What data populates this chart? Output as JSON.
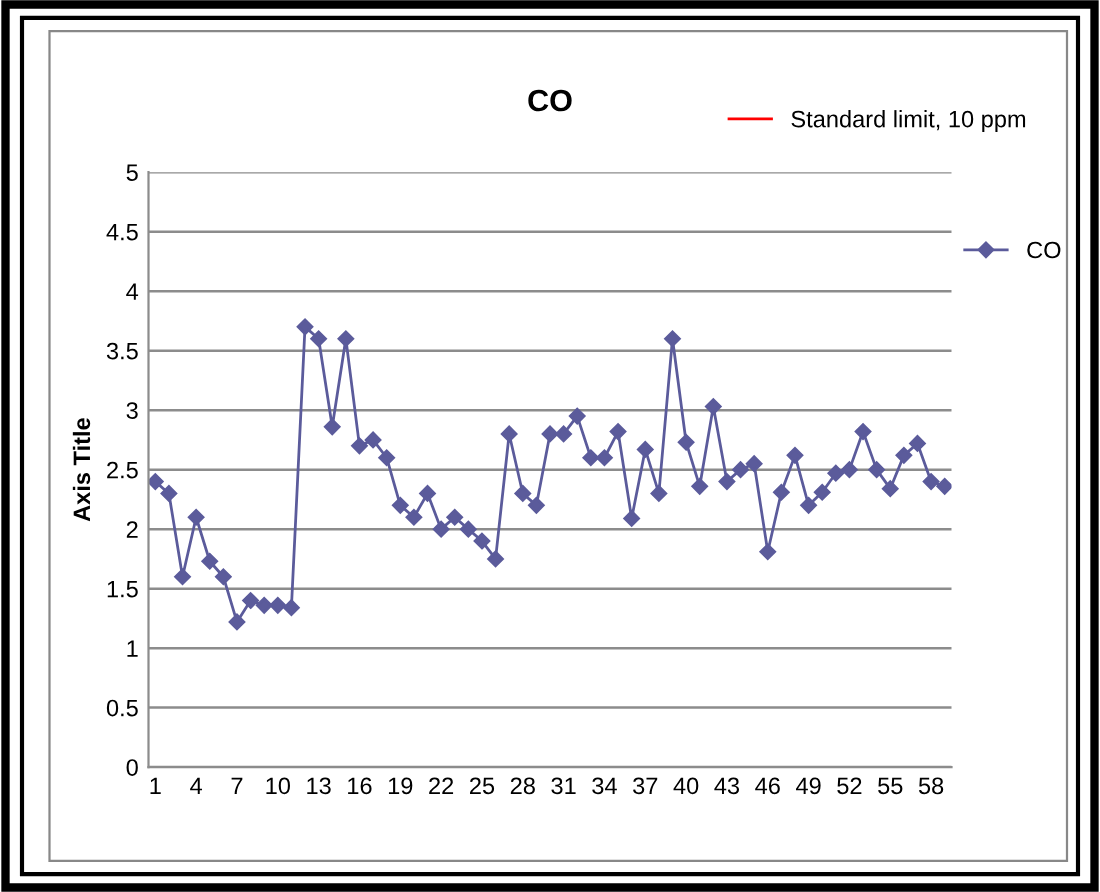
{
  "chart_data": {
    "type": "line",
    "title": "CO",
    "ylabel": "Axis Title",
    "categories": [
      "1",
      null,
      null,
      "4",
      null,
      null,
      "7",
      null,
      null,
      "10",
      null,
      null,
      "13",
      null,
      null,
      "16",
      null,
      null,
      "19",
      null,
      null,
      "22",
      null,
      null,
      "25",
      null,
      null,
      "28",
      null,
      null,
      "31",
      null,
      null,
      "34",
      null,
      null,
      "37",
      null,
      null,
      "40",
      null,
      null,
      "43",
      null,
      null,
      "46",
      null,
      null,
      "49",
      null,
      null,
      "52",
      null,
      null,
      "55",
      null,
      null,
      "58",
      null
    ],
    "series": [
      {
        "name": "Standard limit, 10 ppm",
        "color": "#ff0000",
        "marker": "none",
        "values": [
          null,
          null,
          null,
          null,
          null,
          null,
          null,
          null,
          null,
          null,
          null,
          null,
          null,
          null,
          null,
          null,
          null,
          null,
          null,
          null,
          null,
          null,
          null,
          null,
          null,
          null,
          null,
          null,
          null,
          null,
          null,
          null,
          null,
          null,
          null,
          null,
          null,
          null,
          null,
          null,
          null,
          null,
          null,
          null,
          null,
          null,
          null,
          null,
          null,
          null,
          null,
          null,
          null,
          null,
          null,
          null,
          null,
          null,
          null
        ]
      },
      {
        "name": "CO",
        "color": "#5b5b9b",
        "marker": "diamond",
        "values": [
          2.4,
          2.3,
          1.6,
          2.1,
          1.73,
          1.6,
          1.22,
          1.4,
          1.36,
          1.36,
          1.34,
          3.7,
          3.6,
          2.86,
          3.6,
          2.7,
          2.75,
          2.6,
          2.2,
          2.1,
          2.3,
          2.0,
          2.1,
          2.0,
          1.9,
          1.75,
          2.8,
          2.3,
          2.2,
          2.8,
          2.8,
          2.95,
          2.6,
          2.6,
          2.82,
          2.09,
          2.67,
          2.3,
          3.6,
          2.73,
          2.36,
          3.03,
          2.4,
          2.5,
          2.55,
          1.81,
          2.31,
          2.62,
          2.2,
          2.31,
          2.47,
          2.5,
          2.82,
          2.5,
          2.34,
          2.62,
          2.72,
          2.4,
          2.36
        ]
      }
    ],
    "ylim": [
      0,
      5
    ],
    "yticks": [
      0,
      0.5,
      1,
      1.5,
      2,
      2.5,
      3,
      3.5,
      4,
      4.5,
      5
    ],
    "grid": "y",
    "legend": "right",
    "line_style": "solid"
  }
}
